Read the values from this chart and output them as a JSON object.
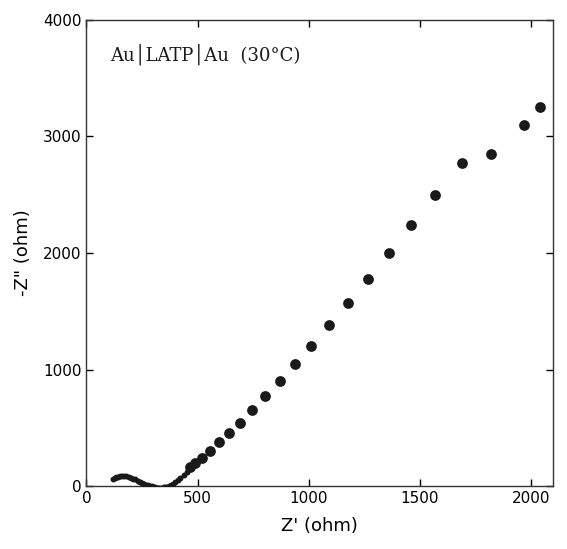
{
  "title": "Au│LATP│Au  (30°C)",
  "xlabel": "Z' (ohm)",
  "ylabel": "-Z\" (ohm)",
  "xlim": [
    0,
    2100
  ],
  "ylim": [
    0,
    4000
  ],
  "xticks": [
    0,
    500,
    1000,
    1500,
    2000
  ],
  "yticks": [
    0,
    1000,
    2000,
    3000,
    4000
  ],
  "marker_color": "#1a1a1a",
  "background_color": "#ffffff",
  "semicircle_points": {
    "z_real": [
      120,
      127,
      135,
      143,
      152,
      161,
      170,
      180,
      190,
      200,
      210,
      220,
      230,
      240,
      250,
      260,
      270,
      278,
      286,
      293,
      300,
      308,
      315,
      322,
      328,
      334,
      340,
      347,
      354,
      362,
      370,
      379,
      388,
      398,
      410,
      423,
      437,
      452,
      468
    ],
    "z_imag": [
      65,
      70,
      76,
      80,
      83,
      85,
      85,
      83,
      79,
      73,
      65,
      57,
      47,
      38,
      28,
      20,
      12,
      6,
      1,
      -3,
      -7,
      -10,
      -12,
      -13,
      -14,
      -14,
      -13,
      -11,
      -8,
      -4,
      2,
      10,
      20,
      33,
      50,
      70,
      95,
      125,
      160
    ]
  },
  "tail_points": {
    "z_real": [
      468,
      490,
      520,
      555,
      595,
      640,
      690,
      745,
      805,
      870,
      940,
      1010,
      1090,
      1175,
      1265,
      1360,
      1460,
      1570,
      1690,
      1820,
      1970,
      2040
    ],
    "z_imag": [
      160,
      195,
      245,
      305,
      375,
      455,
      545,
      650,
      770,
      905,
      1050,
      1205,
      1380,
      1570,
      1780,
      2000,
      2240,
      2500,
      2770,
      2850,
      3100,
      3250
    ]
  }
}
